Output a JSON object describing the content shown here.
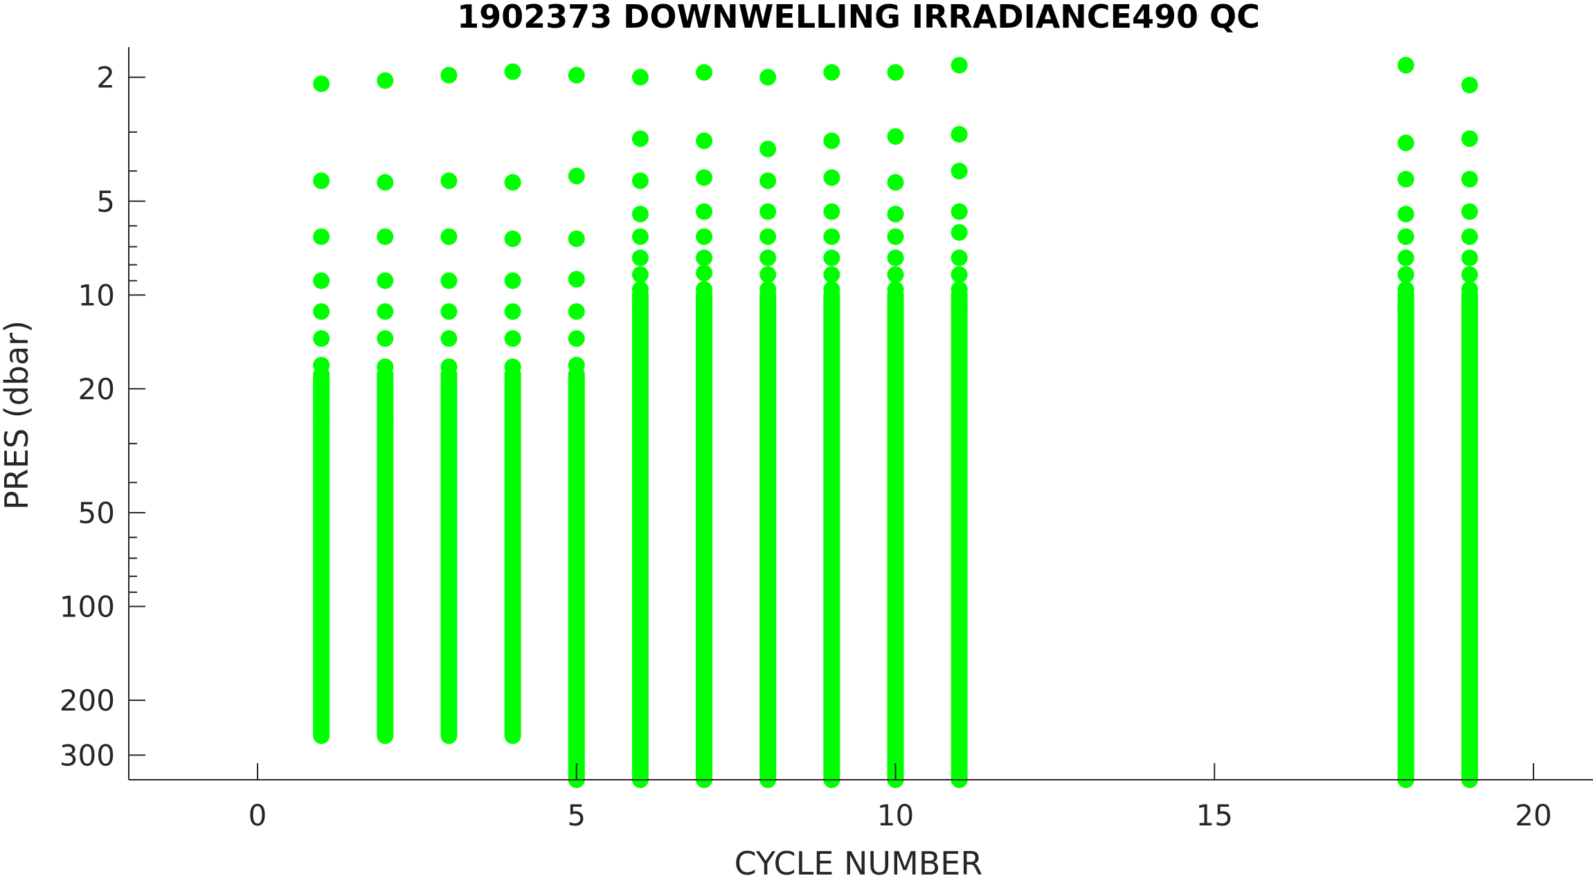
{
  "chart_data": {
    "type": "scatter",
    "title": "1902373  DOWNWELLING IRRADIANCE490 QC",
    "xlabel": "CYCLE NUMBER",
    "ylabel": "PRES (dbar)",
    "xlim": [
      -2,
      21
    ],
    "ylim": [
      1.6,
      360
    ],
    "y_scale": "log",
    "y_reversed": true,
    "grid": false,
    "marker_color": "#00ff00",
    "x_ticks": [
      0,
      5,
      10,
      15,
      20
    ],
    "y_ticks": [
      2,
      5,
      10,
      20,
      50,
      100,
      200,
      300
    ],
    "y_minor_ticks": [
      3,
      4,
      6,
      7,
      8,
      9,
      30,
      40,
      60,
      70,
      80,
      90
    ],
    "series": [
      {
        "values": [
          {
            "x": 1,
            "p": [
              2.1,
              4.3,
              6.5,
              9.0,
              11.3,
              13.8,
              16.8,
              20.5,
              25.0
            ],
            "p_continuous_from": 18,
            "p_max": 260
          },
          {
            "x": 2,
            "p": [
              2.05,
              4.35,
              6.5,
              9.0,
              11.3,
              13.8,
              17.0,
              20.5,
              25.0
            ],
            "p_continuous_from": 18,
            "p_max": 260
          },
          {
            "x": 3,
            "p": [
              1.97,
              4.3,
              6.5,
              9.0,
              11.3,
              13.8,
              17.0,
              20.5,
              25.0
            ],
            "p_continuous_from": 18,
            "p_max": 260
          },
          {
            "x": 4,
            "p": [
              1.92,
              4.35,
              6.6,
              9.0,
              11.3,
              13.8,
              17.0,
              20.5,
              25.0
            ],
            "p_continuous_from": 18,
            "p_max": 260
          },
          {
            "x": 5,
            "p": [
              1.97,
              4.15,
              6.6,
              8.9,
              11.3,
              13.8,
              16.8,
              20.5,
              25.0
            ],
            "p_continuous_from": 18,
            "p_max": 360
          },
          {
            "x": 6,
            "p": [
              2.0,
              3.15,
              4.3,
              5.5,
              6.5,
              7.6,
              8.6,
              9.6,
              10.8
            ],
            "p_continuous_from": 10,
            "p_max": 360
          },
          {
            "x": 7,
            "p": [
              1.93,
              3.2,
              4.2,
              5.4,
              6.5,
              7.6,
              8.5,
              9.6,
              10.8
            ],
            "p_continuous_from": 10,
            "p_max": 360
          },
          {
            "x": 8,
            "p": [
              2.0,
              3.4,
              4.3,
              5.4,
              6.5,
              7.6,
              8.6,
              9.6,
              10.8
            ],
            "p_continuous_from": 10,
            "p_max": 360
          },
          {
            "x": 9,
            "p": [
              1.93,
              3.2,
              4.2,
              5.4,
              6.5,
              7.6,
              8.6,
              9.6,
              10.8
            ],
            "p_continuous_from": 10,
            "p_max": 360
          },
          {
            "x": 10,
            "p": [
              1.93,
              3.1,
              4.35,
              5.5,
              6.5,
              7.6,
              8.6,
              9.6,
              10.8
            ],
            "p_continuous_from": 10,
            "p_max": 360
          },
          {
            "x": 11,
            "p": [
              1.83,
              3.05,
              4.0,
              5.4,
              6.3,
              7.6,
              8.6,
              9.6,
              10.8
            ],
            "p_continuous_from": 10,
            "p_max": 360
          },
          {
            "x": 18,
            "p": [
              1.83,
              3.25,
              4.25,
              5.5,
              6.5,
              7.6,
              8.6,
              9.6,
              10.8
            ],
            "p_continuous_from": 10,
            "p_max": 360
          },
          {
            "x": 19,
            "p": [
              2.12,
              3.15,
              4.25,
              5.4,
              6.5,
              7.6,
              8.6,
              9.6,
              10.8
            ],
            "p_continuous_from": 10,
            "p_max": 360
          }
        ]
      }
    ]
  }
}
